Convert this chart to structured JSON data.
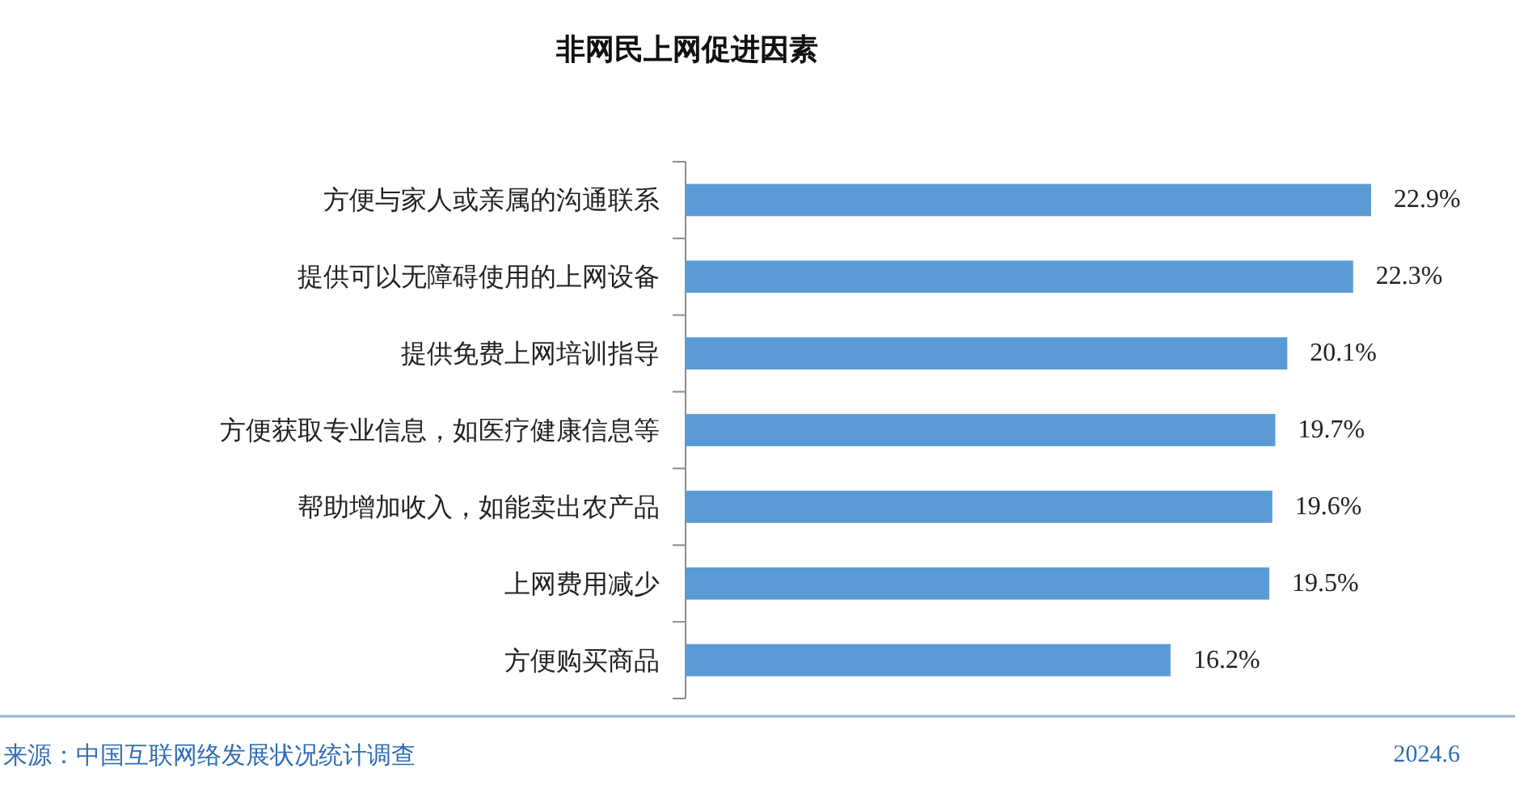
{
  "chart_data": {
    "type": "bar",
    "orientation": "horizontal",
    "title": "非网民上网促进因素",
    "categories": [
      "方便与家人或亲属的沟通联系",
      "提供可以无障碍使用的上网设备",
      "提供免费上网培训指导",
      "方便获取专业信息，如医疗健康信息等",
      "帮助增加收入，如能卖出农产品",
      "上网费用减少",
      "方便购买商品"
    ],
    "values": [
      22.9,
      22.3,
      20.1,
      19.7,
      19.6,
      19.5,
      16.2
    ],
    "color": "#5b9bd5",
    "value_labels": [
      "22.9%",
      "22.3%",
      "20.1%",
      "19.7%",
      "19.6%",
      "19.5%",
      "16.2%"
    ],
    "tick_labels": "y",
    "annotations": [
      "来源：中国互联网络发展状况统计调查",
      "2024.6"
    ]
  }
}
